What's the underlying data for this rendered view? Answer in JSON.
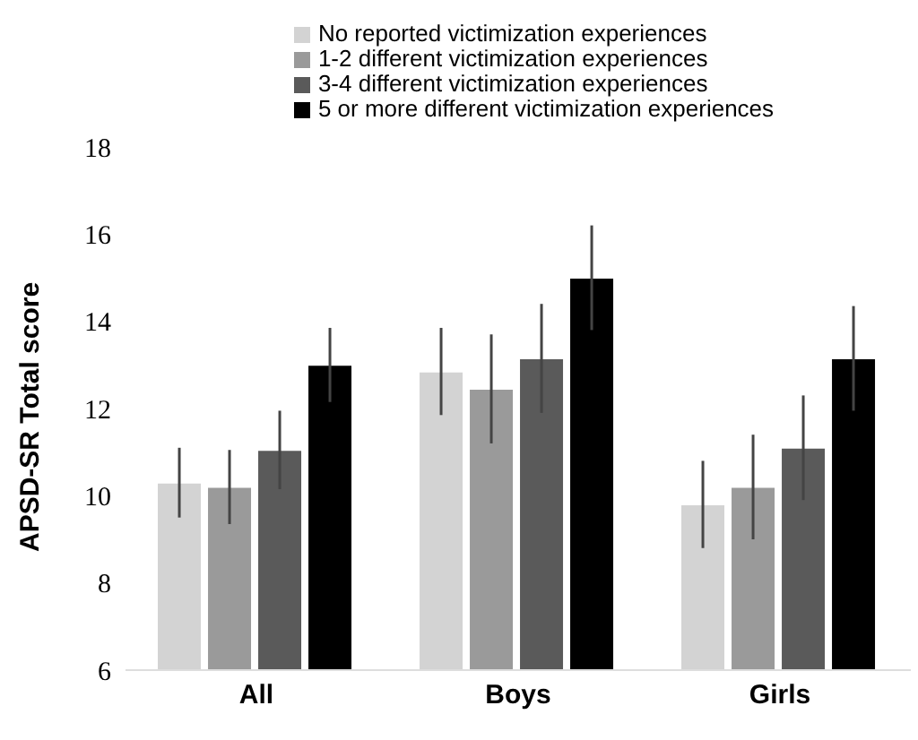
{
  "chart_data": {
    "type": "bar",
    "ylabel": "APSD-SR Total score",
    "categories": [
      "All",
      "Boys",
      "Girls"
    ],
    "series": [
      {
        "name": "No reported victimization experiences",
        "color": "#d3d3d3",
        "values": [
          10.3,
          12.85,
          9.8
        ],
        "errors": [
          0.8,
          1.0,
          1.0
        ]
      },
      {
        "name": "1-2 different victimization experiences",
        "color": "#9a9a9a",
        "values": [
          10.2,
          12.45,
          10.2
        ],
        "errors": [
          0.85,
          1.25,
          1.2
        ]
      },
      {
        "name": "3-4 different victimization experiences",
        "color": "#5a5a5a",
        "values": [
          11.05,
          13.15,
          11.1
        ],
        "errors": [
          0.9,
          1.25,
          1.2
        ]
      },
      {
        "name": "5 or more different victimization experiences",
        "color": "#000000",
        "values": [
          13.0,
          15.0,
          13.15
        ],
        "errors": [
          0.85,
          1.2,
          1.2
        ]
      }
    ],
    "ylim": [
      6,
      18
    ],
    "yticks": [
      6,
      8,
      10,
      12,
      14,
      16,
      18
    ],
    "grid": false,
    "legend": "top"
  }
}
